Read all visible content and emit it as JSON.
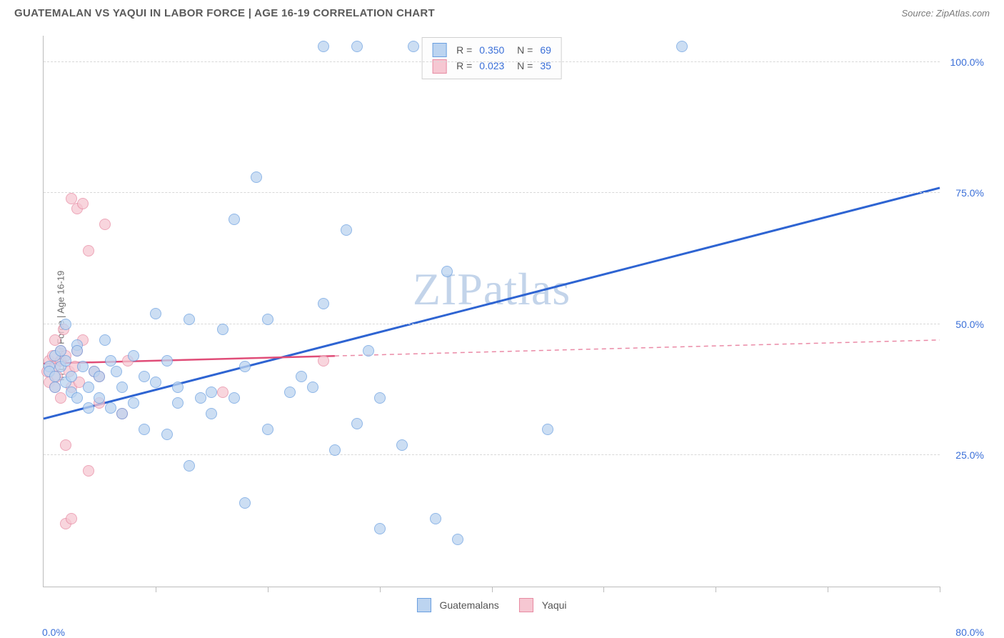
{
  "header": {
    "title": "GUATEMALAN VS YAQUI IN LABOR FORCE | AGE 16-19 CORRELATION CHART",
    "source": "Source: ZipAtlas.com"
  },
  "chart": {
    "type": "scatter",
    "y_axis_label": "In Labor Force | Age 16-19",
    "watermark": "ZIPatlas",
    "background_color": "#ffffff",
    "grid_color": "#d8d8d8",
    "axis_color": "#bcbcbc",
    "tick_label_color": "#3a6fd8",
    "xlim": [
      0,
      80
    ],
    "ylim": [
      0,
      105
    ],
    "y_ticks": [
      {
        "value": 25,
        "label": "25.0%"
      },
      {
        "value": 50,
        "label": "50.0%"
      },
      {
        "value": 75,
        "label": "75.0%"
      },
      {
        "value": 100,
        "label": "100.0%"
      }
    ],
    "x_ticks": [
      10,
      20,
      30,
      40,
      50,
      60,
      70,
      80
    ],
    "x_tick_labels": {
      "min": "0.0%",
      "max": "80.0%"
    },
    "series": [
      {
        "name": "Guatemalans",
        "fill_color": "#bcd4f0",
        "stroke_color": "#6a9fe0",
        "trend_color": "#2e64d2",
        "trend_width": 3,
        "trend_solid_end_x": 80,
        "r": "0.350",
        "n": "69",
        "trend": {
          "y_at_x0": 32,
          "y_at_x80": 76
        },
        "points": [
          [
            0.5,
            42
          ],
          [
            0.5,
            41
          ],
          [
            1,
            40
          ],
          [
            1,
            44
          ],
          [
            1,
            38
          ],
          [
            1.5,
            45
          ],
          [
            1.5,
            42
          ],
          [
            2,
            39
          ],
          [
            2,
            43
          ],
          [
            2,
            50
          ],
          [
            2.5,
            37
          ],
          [
            2.5,
            40
          ],
          [
            3,
            46
          ],
          [
            3,
            36
          ],
          [
            3,
            45
          ],
          [
            3.5,
            42
          ],
          [
            4,
            38
          ],
          [
            4,
            34
          ],
          [
            4.5,
            41
          ],
          [
            5,
            40
          ],
          [
            5,
            36
          ],
          [
            5.5,
            47
          ],
          [
            6,
            43
          ],
          [
            6,
            34
          ],
          [
            6.5,
            41
          ],
          [
            7,
            38
          ],
          [
            7,
            33
          ],
          [
            8,
            35
          ],
          [
            8,
            44
          ],
          [
            9,
            30
          ],
          [
            9,
            40
          ],
          [
            10,
            39
          ],
          [
            10,
            52
          ],
          [
            11,
            43
          ],
          [
            11,
            29
          ],
          [
            12,
            38
          ],
          [
            12,
            35
          ],
          [
            13,
            51
          ],
          [
            13,
            23
          ],
          [
            14,
            36
          ],
          [
            15,
            33
          ],
          [
            15,
            37
          ],
          [
            16,
            49
          ],
          [
            17,
            36
          ],
          [
            17,
            70
          ],
          [
            18,
            42
          ],
          [
            18,
            16
          ],
          [
            19,
            78
          ],
          [
            20,
            30
          ],
          [
            20,
            51
          ],
          [
            22,
            37
          ],
          [
            23,
            40
          ],
          [
            24,
            38
          ],
          [
            25,
            54
          ],
          [
            25,
            103
          ],
          [
            26,
            26
          ],
          [
            27,
            68
          ],
          [
            28,
            31
          ],
          [
            28,
            103
          ],
          [
            29,
            45
          ],
          [
            30,
            36
          ],
          [
            30,
            11
          ],
          [
            32,
            27
          ],
          [
            33,
            103
          ],
          [
            35,
            13
          ],
          [
            36,
            60
          ],
          [
            37,
            9
          ],
          [
            45,
            30
          ],
          [
            57,
            103
          ]
        ]
      },
      {
        "name": "Yaqui",
        "fill_color": "#f6c7d2",
        "stroke_color": "#e78aa2",
        "trend_color": "#e04d78",
        "trend_width": 2.5,
        "trend_solid_end_x": 26,
        "r": "0.023",
        "n": "35",
        "trend": {
          "y_at_x0": 42.5,
          "y_at_x80": 47
        },
        "points": [
          [
            0.3,
            41
          ],
          [
            0.5,
            39
          ],
          [
            0.5,
            43
          ],
          [
            0.8,
            44
          ],
          [
            1,
            42
          ],
          [
            1,
            38
          ],
          [
            1,
            47
          ],
          [
            1.2,
            40
          ],
          [
            1.5,
            45
          ],
          [
            1.5,
            36
          ],
          [
            1.5,
            43
          ],
          [
            1.8,
            49
          ],
          [
            2,
            27
          ],
          [
            2,
            44
          ],
          [
            2,
            12
          ],
          [
            2.3,
            41
          ],
          [
            2.5,
            74
          ],
          [
            2.5,
            38
          ],
          [
            2.5,
            13
          ],
          [
            2.8,
            42
          ],
          [
            3,
            72
          ],
          [
            3,
            45
          ],
          [
            3.2,
            39
          ],
          [
            3.5,
            47
          ],
          [
            3.5,
            73
          ],
          [
            4,
            22
          ],
          [
            4,
            64
          ],
          [
            4.5,
            41
          ],
          [
            5,
            40
          ],
          [
            5,
            35
          ],
          [
            5.5,
            69
          ],
          [
            7,
            33
          ],
          [
            7.5,
            43
          ],
          [
            16,
            37
          ],
          [
            25,
            43
          ]
        ]
      }
    ],
    "legend_bottom": [
      {
        "label": "Guatemalans",
        "fill": "#bcd4f0",
        "stroke": "#6a9fe0"
      },
      {
        "label": "Yaqui",
        "fill": "#f6c7d2",
        "stroke": "#e78aa2"
      }
    ]
  }
}
